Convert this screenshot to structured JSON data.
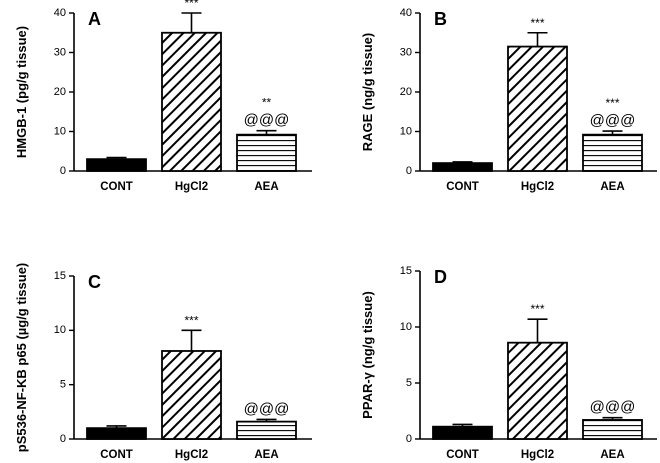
{
  "chart_data": [
    {
      "panel": "A",
      "type": "bar",
      "ylabel": "HMGB-1 (pg/g tissue)",
      "ylim": [
        0,
        40
      ],
      "yticks": [
        0,
        10,
        20,
        30,
        40
      ],
      "categories": [
        "CONT",
        "HgCl2",
        "AEA"
      ],
      "values": [
        3.0,
        35.0,
        9.2
      ],
      "errors": [
        0.4,
        5.0,
        1.0
      ],
      "patterns": [
        "solid",
        "diagonal",
        "horizontal"
      ],
      "annotations": [
        {
          "category": "HgCl2",
          "lines": [
            "***"
          ]
        },
        {
          "category": "AEA",
          "lines": [
            "**",
            "@@@"
          ]
        }
      ]
    },
    {
      "panel": "B",
      "type": "bar",
      "ylabel": "RAGE (ng/g tissue)",
      "ylim": [
        0,
        40
      ],
      "yticks": [
        0,
        10,
        20,
        30,
        40
      ],
      "categories": [
        "CONT",
        "HgCl2",
        "AEA"
      ],
      "values": [
        2.0,
        31.5,
        9.2
      ],
      "errors": [
        0.3,
        3.5,
        0.9
      ],
      "patterns": [
        "solid",
        "diagonal",
        "horizontal"
      ],
      "annotations": [
        {
          "category": "HgCl2",
          "lines": [
            "***"
          ]
        },
        {
          "category": "AEA",
          "lines": [
            "***",
            "@@@"
          ]
        }
      ]
    },
    {
      "panel": "C",
      "type": "bar",
      "ylabel": "pS536-NF-KB p65 (µg/g tissue)",
      "ylim": [
        0,
        15
      ],
      "yticks": [
        0,
        5,
        10,
        15
      ],
      "categories": [
        "CONT",
        "HgCl2",
        "AEA"
      ],
      "values": [
        1.0,
        8.1,
        1.6
      ],
      "errors": [
        0.2,
        1.9,
        0.2
      ],
      "patterns": [
        "solid",
        "diagonal",
        "horizontal"
      ],
      "annotations": [
        {
          "category": "HgCl2",
          "lines": [
            "***"
          ]
        },
        {
          "category": "AEA",
          "lines": [
            "@@@"
          ]
        }
      ]
    },
    {
      "panel": "D",
      "type": "bar",
      "ylabel": "PPAR-γ (ng/g tissue)",
      "ylim": [
        0,
        15
      ],
      "yticks": [
        0,
        5,
        10,
        15
      ],
      "categories": [
        "CONT",
        "HgCl2",
        "AEA"
      ],
      "values": [
        1.1,
        8.6,
        1.7
      ],
      "errors": [
        0.2,
        2.1,
        0.2
      ],
      "patterns": [
        "solid",
        "diagonal",
        "horizontal"
      ],
      "annotations": [
        {
          "category": "HgCl2",
          "lines": [
            "***"
          ]
        },
        {
          "category": "AEA",
          "lines": [
            "@@@"
          ]
        }
      ]
    }
  ]
}
